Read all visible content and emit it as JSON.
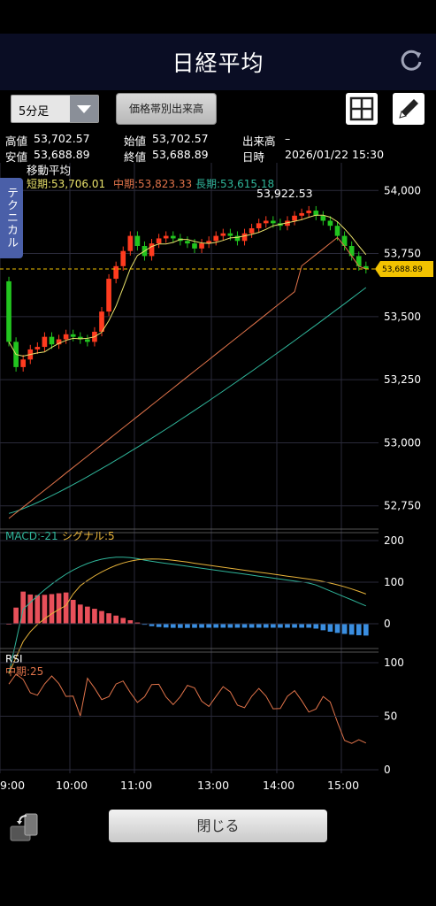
{
  "header": {
    "title": "日経平均",
    "refresh_icon": "refresh-icon"
  },
  "toolbar": {
    "interval_select": "5分足",
    "volume_button": "価格帯別出来高",
    "layout_icon": "grid-icon",
    "draw_icon": "pencil-icon"
  },
  "info": {
    "high_label": "高値",
    "high_value": "53,702.57",
    "open_label": "始値",
    "open_value": "53,702.57",
    "volume_label": "出来高",
    "volume_value": "–",
    "low_label": "安値",
    "low_value": "53,688.89",
    "close_label": "終値",
    "close_value": "53,688.89",
    "datetime_label": "日時",
    "datetime_value": "2026/01/22 15:30"
  },
  "tech_tab": "テクニカル",
  "main_chart": {
    "indicator_title": "移動平均",
    "short_label": "短期:53,706.01",
    "mid_label": "中期:53,823.33",
    "long_label": "長期:53,615.18",
    "peak_label": "53,922.53",
    "current_price_tag": "53,688.89",
    "y_ticks": [
      "54,000",
      "53,750",
      "53,500",
      "53,250",
      "53,000",
      "52,750"
    ],
    "colors": {
      "short": "#e8e06a",
      "mid": "#e0734a",
      "long": "#2fb59a",
      "up": "#ff3b1f",
      "down": "#22c51f",
      "price_tag": "#f2c200"
    }
  },
  "macd": {
    "label": "MACD:-21",
    "signal_label": "シグナル:5",
    "y_ticks": [
      "200",
      "100",
      "0"
    ]
  },
  "rsi": {
    "title": "RSI",
    "mid_label": "中期:25",
    "y_ticks": [
      "100",
      "50",
      "0"
    ]
  },
  "x_ticks": [
    "9:00",
    "10:00",
    "11:00",
    "13:00",
    "14:00",
    "15:00"
  ],
  "bottom": {
    "close_button": "閉じる",
    "rotate_icon": "rotate-screen-icon"
  },
  "chart_data": {
    "type": "candlestick",
    "x_ticks": [
      "9:00",
      "10:00",
      "11:00",
      "13:00",
      "14:00",
      "15:00"
    ],
    "ylim": [
      52700,
      54050
    ],
    "price_closes": [
      53400,
      53300,
      53330,
      53370,
      53380,
      53420,
      53390,
      53410,
      53430,
      53420,
      53410,
      53400,
      53440,
      53520,
      53650,
      53700,
      53760,
      53820,
      53780,
      53740,
      53790,
      53810,
      53820,
      53810,
      53800,
      53790,
      53770,
      53790,
      53800,
      53820,
      53830,
      53820,
      53800,
      53830,
      53850,
      53870,
      53880,
      53870,
      53860,
      53880,
      53900,
      53910,
      53920,
      53900,
      53880,
      53860,
      53820,
      53780,
      53740,
      53700,
      53689
    ],
    "short_ma_last": 53706.01,
    "mid_ma_last": 53823.33,
    "long_ma_last": 53615.18,
    "peak": 53922.53,
    "last": 53688.89,
    "macd_last": -21,
    "signal_last": 5,
    "rsi_last": 25
  }
}
